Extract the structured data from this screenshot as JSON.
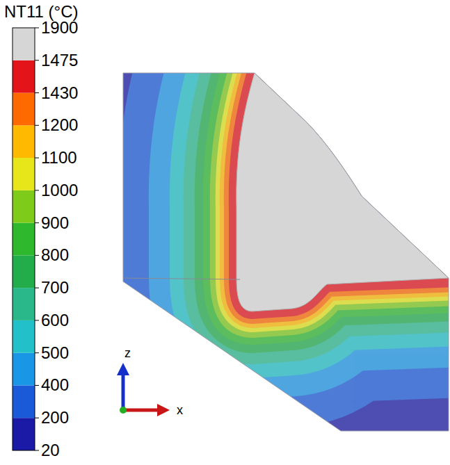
{
  "chart_data": {
    "type": "contour",
    "colorbar": {
      "title": "NT11 (°C)",
      "ticks": [
        20,
        200,
        400,
        500,
        600,
        700,
        800,
        900,
        1000,
        1100,
        1200,
        1430,
        1475,
        1900
      ],
      "band_colors": [
        "#1a1aa6",
        "#1a5ad9",
        "#1a96e6",
        "#22c0c8",
        "#2ab88a",
        "#22ad4a",
        "#2db82d",
        "#7ecb1a",
        "#e6e61a",
        "#ffba00",
        "#ff6a00",
        "#e3141a",
        "#d6d6d6"
      ]
    },
    "axis_labels": {
      "z": "z",
      "x": "x"
    }
  }
}
